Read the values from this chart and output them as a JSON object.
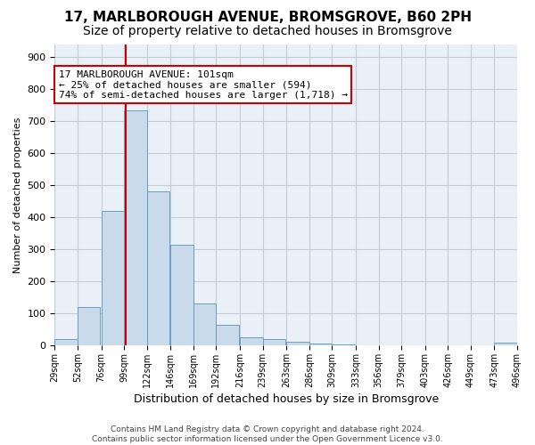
{
  "title": "17, MARLBOROUGH AVENUE, BROMSGROVE, B60 2PH",
  "subtitle": "Size of property relative to detached houses in Bromsgrove",
  "xlabel": "Distribution of detached houses by size in Bromsgrove",
  "ylabel": "Number of detached properties",
  "bar_color": "#c9daea",
  "bar_edge_color": "#6a9fc0",
  "grid_color": "#c0ccd8",
  "background_color": "#eaf0f8",
  "property_line_x": 101,
  "property_line_color": "#cc0000",
  "annotation_line1": "17 MARLBOROUGH AVENUE: 101sqm",
  "annotation_line2": "← 25% of detached houses are smaller (594)",
  "annotation_line3": "74% of semi-detached houses are larger (1,718) →",
  "annotation_box_color": "#cc0000",
  "bin_edges": [
    29,
    52,
    76,
    99,
    122,
    146,
    169,
    192,
    216,
    239,
    263,
    286,
    309,
    333,
    356,
    379,
    403,
    426,
    449,
    473,
    496
  ],
  "bar_heights": [
    20,
    120,
    420,
    735,
    480,
    315,
    130,
    65,
    25,
    20,
    10,
    5,
    2,
    0,
    0,
    0,
    0,
    0,
    0,
    8
  ],
  "ylim": [
    0,
    940
  ],
  "yticks": [
    0,
    100,
    200,
    300,
    400,
    500,
    600,
    700,
    800,
    900
  ],
  "footer_text": "Contains HM Land Registry data © Crown copyright and database right 2024.\nContains public sector information licensed under the Open Government Licence v3.0.",
  "title_fontsize": 11,
  "subtitle_fontsize": 10,
  "xlabel_fontsize": 9,
  "ylabel_fontsize": 8
}
